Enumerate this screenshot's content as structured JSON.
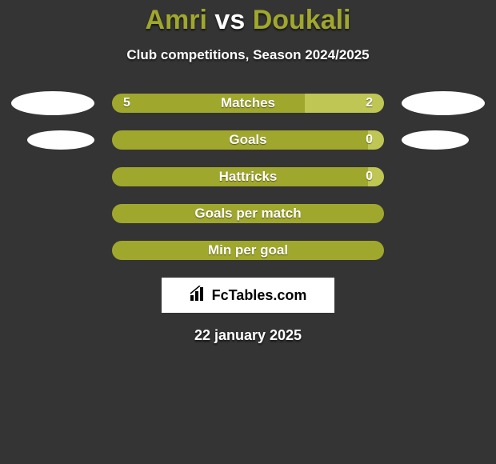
{
  "title": {
    "parts": [
      {
        "text": "Amri",
        "color": "#a0a72d"
      },
      {
        "text": " vs ",
        "color": "#ffffff"
      },
      {
        "text": "Doukali",
        "color": "#a0a72d"
      }
    ],
    "fontsize": 34
  },
  "subtitle": "Club competitions, Season 2024/2025",
  "background_color": "#343434",
  "bar_color_left": "#a0a72d",
  "bar_color_right": "#bfc653",
  "bar_container_width": 340,
  "stats": [
    {
      "label": "Matches",
      "left_value": "5",
      "right_value": "2",
      "left_pct": 71,
      "right_pct": 29,
      "show_left_oval": true,
      "show_right_oval": true,
      "oval_size": "large"
    },
    {
      "label": "Goals",
      "left_value": "",
      "right_value": "0",
      "left_pct": 94,
      "right_pct": 6,
      "show_left_oval": true,
      "show_right_oval": true,
      "oval_size": "small"
    },
    {
      "label": "Hattricks",
      "left_value": "",
      "right_value": "0",
      "left_pct": 94,
      "right_pct": 6,
      "show_left_oval": false,
      "show_right_oval": false
    },
    {
      "label": "Goals per match",
      "left_value": "",
      "right_value": "",
      "left_pct": 100,
      "right_pct": 0,
      "show_left_oval": false,
      "show_right_oval": false
    },
    {
      "label": "Min per goal",
      "left_value": "",
      "right_value": "",
      "left_pct": 100,
      "right_pct": 0,
      "show_left_oval": false,
      "show_right_oval": false
    }
  ],
  "logo": {
    "text": "FcTables.com",
    "icon_name": "bar-chart-icon"
  },
  "date": "22 january 2025"
}
